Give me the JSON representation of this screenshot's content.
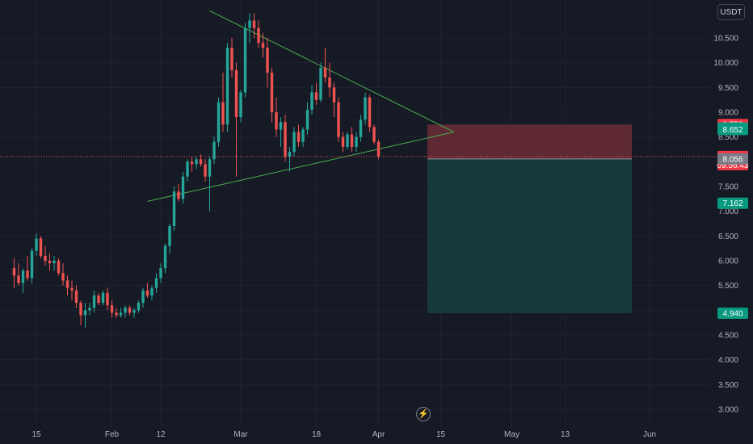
{
  "currency_label": "USDT",
  "live_icon": "lightning-icon",
  "colors": {
    "background": "#161a25",
    "grid": "#1f2330",
    "up": "#26a69a",
    "down": "#ef5350",
    "trendline": "#4caf50",
    "stop_zone": "#6b2d35",
    "target_zone": "#16403f",
    "last_price_line": "#ef5350"
  },
  "chart_data": {
    "type": "candlestick",
    "title": "",
    "xlabel": "",
    "ylabel": "",
    "ylim": [
      2.8,
      11.0
    ],
    "y_ticks": [
      "10.500",
      "10.000",
      "9.500",
      "9.000",
      "8.500",
      "8.000",
      "7.500",
      "7.000",
      "6.500",
      "6.000",
      "5.500",
      "5.000",
      "4.500",
      "4.000",
      "3.500",
      "3.000"
    ],
    "y_tick_values": [
      10.5,
      10.0,
      9.5,
      9.0,
      8.5,
      8.0,
      7.5,
      7.0,
      6.5,
      6.0,
      5.5,
      5.0,
      4.5,
      4.0,
      3.5,
      3.0
    ],
    "x_ticks": [
      "15",
      "Feb",
      "12",
      "Mar",
      "18",
      "Apr",
      "15",
      "May",
      "13",
      "Jun"
    ],
    "x_tick_days": [
      15,
      32,
      43,
      61,
      78,
      92,
      106,
      122,
      134,
      153
    ],
    "x_range_days": [
      10,
      165
    ],
    "grid": true,
    "candles_start_day": 10,
    "candles": [
      [
        5.85,
        6.05,
        5.45,
        5.7
      ],
      [
        5.7,
        5.95,
        5.5,
        5.55
      ],
      [
        5.55,
        5.85,
        5.35,
        5.8
      ],
      [
        5.8,
        6.1,
        5.6,
        5.65
      ],
      [
        5.65,
        6.25,
        5.55,
        6.2
      ],
      [
        6.2,
        6.55,
        6.1,
        6.45
      ],
      [
        6.45,
        6.5,
        6.05,
        6.1
      ],
      [
        6.1,
        6.3,
        5.9,
        6.0
      ],
      [
        6.0,
        6.15,
        5.8,
        5.95
      ],
      [
        5.95,
        6.1,
        5.8,
        6.0
      ],
      [
        6.0,
        6.05,
        5.7,
        5.75
      ],
      [
        5.75,
        5.95,
        5.5,
        5.6
      ],
      [
        5.6,
        5.7,
        5.3,
        5.45
      ],
      [
        5.45,
        5.6,
        5.2,
        5.4
      ],
      [
        5.4,
        5.5,
        5.05,
        5.15
      ],
      [
        5.15,
        5.2,
        4.7,
        4.9
      ],
      [
        4.9,
        5.15,
        4.65,
        5.0
      ],
      [
        5.0,
        5.15,
        4.9,
        5.05
      ],
      [
        5.05,
        5.4,
        4.95,
        5.3
      ],
      [
        5.3,
        5.35,
        5.1,
        5.15
      ],
      [
        5.15,
        5.4,
        5.1,
        5.35
      ],
      [
        5.35,
        5.45,
        5.0,
        5.1
      ],
      [
        5.1,
        5.2,
        4.85,
        4.95
      ],
      [
        4.95,
        5.05,
        4.85,
        4.9
      ],
      [
        4.9,
        5.05,
        4.85,
        4.95
      ],
      [
        4.95,
        5.1,
        4.85,
        5.05
      ],
      [
        5.05,
        5.1,
        4.9,
        4.95
      ],
      [
        4.95,
        5.05,
        4.85,
        5.0
      ],
      [
        5.0,
        5.2,
        4.95,
        5.15
      ],
      [
        5.15,
        5.45,
        5.05,
        5.4
      ],
      [
        5.4,
        5.55,
        5.25,
        5.3
      ],
      [
        5.3,
        5.5,
        5.2,
        5.45
      ],
      [
        5.45,
        5.75,
        5.35,
        5.65
      ],
      [
        5.65,
        5.95,
        5.55,
        5.85
      ],
      [
        5.85,
        6.35,
        5.75,
        6.3
      ],
      [
        6.3,
        6.75,
        6.15,
        6.7
      ],
      [
        6.7,
        7.5,
        6.6,
        7.4
      ],
      [
        7.4,
        7.55,
        7.2,
        7.25
      ],
      [
        7.25,
        7.8,
        7.15,
        7.7
      ],
      [
        7.7,
        8.05,
        7.6,
        8.0
      ],
      [
        8.0,
        8.1,
        7.8,
        7.95
      ],
      [
        7.95,
        8.1,
        7.85,
        8.05
      ],
      [
        8.05,
        8.15,
        7.9,
        7.95
      ],
      [
        7.95,
        8.05,
        7.6,
        7.7
      ],
      [
        7.7,
        8.1,
        7.0,
        8.05
      ],
      [
        8.05,
        8.5,
        7.95,
        8.4
      ],
      [
        8.4,
        9.3,
        8.3,
        9.2
      ],
      [
        9.2,
        9.8,
        8.6,
        8.75
      ],
      [
        8.75,
        10.4,
        8.6,
        10.3
      ],
      [
        10.3,
        10.5,
        9.7,
        9.85
      ],
      [
        9.85,
        10.0,
        7.7,
        8.9
      ],
      [
        8.9,
        9.45,
        8.8,
        9.4
      ],
      [
        9.4,
        10.8,
        9.3,
        10.7
      ],
      [
        10.7,
        11.0,
        10.4,
        10.85
      ],
      [
        10.85,
        11.0,
        10.5,
        10.7
      ],
      [
        10.7,
        10.85,
        10.3,
        10.4
      ],
      [
        10.4,
        10.6,
        10.1,
        10.3
      ],
      [
        10.3,
        10.5,
        9.5,
        9.8
      ],
      [
        9.8,
        9.9,
        8.8,
        9.0
      ],
      [
        9.0,
        9.3,
        8.5,
        8.65
      ],
      [
        8.65,
        8.9,
        8.3,
        8.8
      ],
      [
        8.8,
        8.95,
        8.0,
        8.1
      ],
      [
        8.1,
        8.3,
        7.8,
        8.2
      ],
      [
        8.2,
        8.7,
        8.1,
        8.6
      ],
      [
        8.6,
        8.75,
        8.3,
        8.4
      ],
      [
        8.4,
        8.7,
        8.3,
        8.65
      ],
      [
        8.65,
        9.2,
        8.55,
        9.05
      ],
      [
        9.05,
        9.55,
        8.95,
        9.4
      ],
      [
        9.4,
        9.6,
        9.15,
        9.25
      ],
      [
        9.25,
        10.0,
        9.2,
        9.9
      ],
      [
        9.9,
        10.3,
        9.6,
        9.7
      ],
      [
        9.7,
        10.0,
        9.3,
        9.5
      ],
      [
        9.5,
        9.6,
        8.9,
        9.2
      ],
      [
        9.2,
        9.3,
        8.4,
        8.5
      ],
      [
        8.5,
        8.6,
        8.2,
        8.3
      ],
      [
        8.3,
        8.6,
        8.25,
        8.55
      ],
      [
        8.55,
        8.7,
        8.2,
        8.3
      ],
      [
        8.3,
        8.6,
        8.2,
        8.5
      ],
      [
        8.5,
        8.95,
        8.4,
        8.85
      ],
      [
        8.85,
        9.4,
        8.75,
        9.3
      ],
      [
        9.3,
        9.35,
        8.6,
        8.7
      ],
      [
        8.7,
        8.75,
        8.35,
        8.4
      ],
      [
        8.4,
        8.45,
        8.05,
        8.11
      ]
    ],
    "annotations": {
      "upper_trendline": [
        [
          54,
          11.05
        ],
        [
          109,
          8.6
        ]
      ],
      "lower_trendline": [
        [
          40,
          7.2
        ],
        [
          109,
          8.6
        ]
      ],
      "position_box": {
        "day_start": 103,
        "day_end": 149,
        "entry": 8.056,
        "stop": 8.752,
        "target": 4.94
      }
    },
    "last_price": 8.105,
    "price_tags": [
      {
        "label": "8.752",
        "value": 8.752,
        "color": "#f23645"
      },
      {
        "label": "8.681",
        "value": 8.681,
        "color": "#089981"
      },
      {
        "label": "8.652",
        "value": 8.652,
        "color": "#089981"
      },
      {
        "label": "8.105",
        "value": 8.105,
        "color": "#f23645",
        "sub": "09:56:43"
      },
      {
        "label": "8.056",
        "value": 8.056,
        "color": "#787b86"
      },
      {
        "label": "7.162",
        "value": 7.162,
        "color": "#089981"
      },
      {
        "label": "4.940",
        "value": 4.94,
        "color": "#089981"
      }
    ]
  }
}
